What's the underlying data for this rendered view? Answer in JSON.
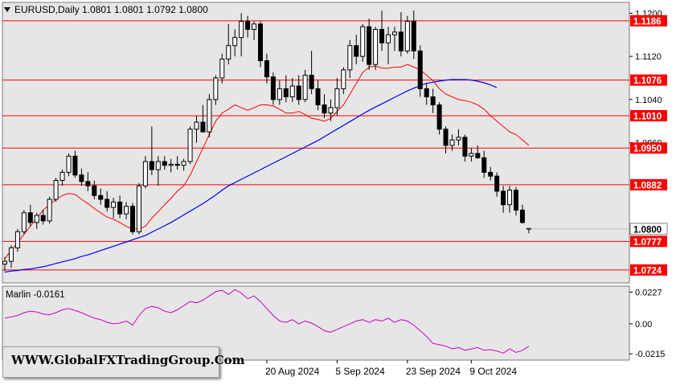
{
  "symbol_header": "EURUSD,Daily  1.0801  1.0801  1.0792  1.0800",
  "watermark": "WWW.GlobalFXTradingGroup.Com",
  "chart_data": [
    {
      "type": "candlestick",
      "title": "EURUSD,Daily",
      "ohlc_header": {
        "open": 1.0801,
        "high": 1.0801,
        "low": 1.0792,
        "close": 1.08
      },
      "ylim": [
        1.07,
        1.122
      ],
      "y_ticks": [
        1.12,
        1.112,
        1.104,
        1.096
      ],
      "x_tick_labels": [
        "20 Aug 2024",
        "5 Sep 2024",
        "23 Sep 2024",
        "9 Oct 2024"
      ],
      "current_price": 1.08,
      "grid": false,
      "colors": {
        "background": "#e6e6e6",
        "bull": "#ffffff",
        "bear": "#000000",
        "level_line": "#ff0000",
        "label_fill": "#ff0000",
        "label_text": "#ffffff",
        "ma_fast": "#ff0000",
        "ma_slow": "#0000ff"
      },
      "horizontal_levels": [
        1.1186,
        1.1076,
        1.101,
        1.095,
        1.0882,
        1.0777,
        1.0724
      ],
      "candles": [
        [
          1.0735,
          1.0748,
          1.0722,
          1.074
        ],
        [
          1.074,
          1.077,
          1.0728,
          1.0765
        ],
        [
          1.0765,
          1.08,
          1.0758,
          1.0795
        ],
        [
          1.0795,
          1.0835,
          1.079,
          1.083
        ],
        [
          1.083,
          1.0845,
          1.0805,
          1.0812
        ],
        [
          1.0812,
          1.083,
          1.08,
          1.0825
        ],
        [
          1.0825,
          1.0835,
          1.0808,
          1.0815
        ],
        [
          1.0815,
          1.086,
          1.081,
          1.0855
        ],
        [
          1.0855,
          1.0895,
          1.085,
          1.089
        ],
        [
          1.089,
          1.091,
          1.088,
          1.0905
        ],
        [
          1.0905,
          1.094,
          1.0898,
          1.0935
        ],
        [
          1.0935,
          1.0945,
          1.0895,
          1.09
        ],
        [
          1.09,
          1.0912,
          1.088,
          1.0888
        ],
        [
          1.0888,
          1.0905,
          1.087,
          1.088
        ],
        [
          1.088,
          1.089,
          1.0855,
          1.0862
        ],
        [
          1.0862,
          1.0875,
          1.0845,
          1.0855
        ],
        [
          1.0855,
          1.087,
          1.0832,
          1.084
        ],
        [
          1.084,
          1.0858,
          1.082,
          1.085
        ],
        [
          1.085,
          1.0862,
          1.082,
          1.0828
        ],
        [
          1.0828,
          1.085,
          1.0818,
          1.0842
        ],
        [
          1.0842,
          1.0848,
          1.079,
          1.0795
        ],
        [
          1.0795,
          1.0885,
          1.079,
          1.088
        ],
        [
          1.088,
          1.0935,
          1.0875,
          1.0925
        ],
        [
          1.0925,
          1.099,
          1.09,
          1.091
        ],
        [
          1.091,
          1.0935,
          1.088,
          1.0925
        ],
        [
          1.0925,
          1.0935,
          1.091,
          1.0918
        ],
        [
          1.0918,
          1.093,
          1.0905,
          1.092
        ],
        [
          1.092,
          1.0935,
          1.091,
          1.0918
        ],
        [
          1.0918,
          1.093,
          1.0908,
          1.0925
        ],
        [
          1.0925,
          1.099,
          1.092,
          1.0985
        ],
        [
          1.0985,
          1.101,
          1.096,
          1.0998
        ],
        [
          1.0998,
          1.103,
          1.0985,
          1.098
        ],
        [
          1.098,
          1.105,
          1.097,
          1.104
        ],
        [
          1.104,
          1.1085,
          1.103,
          1.108
        ],
        [
          1.108,
          1.1125,
          1.107,
          1.1115
        ],
        [
          1.1115,
          1.118,
          1.1105,
          1.114
        ],
        [
          1.114,
          1.117,
          1.112,
          1.1155
        ],
        [
          1.1155,
          1.12,
          1.112,
          1.1185
        ],
        [
          1.1185,
          1.1195,
          1.1155,
          1.117
        ],
        [
          1.117,
          1.1185,
          1.115,
          1.118
        ],
        [
          1.118,
          1.1185,
          1.11,
          1.1112
        ],
        [
          1.1112,
          1.1125,
          1.107,
          1.1082
        ],
        [
          1.1082,
          1.109,
          1.103,
          1.104
        ],
        [
          1.104,
          1.1075,
          1.103,
          1.106
        ],
        [
          1.106,
          1.1085,
          1.1035,
          1.1045
        ],
        [
          1.1045,
          1.108,
          1.1035,
          1.1065
        ],
        [
          1.1065,
          1.1085,
          1.103,
          1.104
        ],
        [
          1.104,
          1.1095,
          1.1035,
          1.1085
        ],
        [
          1.1085,
          1.113,
          1.105,
          1.106
        ],
        [
          1.106,
          1.1075,
          1.102,
          1.103
        ],
        [
          1.103,
          1.105,
          1.1005,
          1.1015
        ],
        [
          1.1015,
          1.104,
          1.1,
          1.1025
        ],
        [
          1.1025,
          1.108,
          1.101,
          1.106
        ],
        [
          1.106,
          1.11,
          1.105,
          1.1095
        ],
        [
          1.1095,
          1.115,
          1.108,
          1.114
        ],
        [
          1.114,
          1.116,
          1.1105,
          1.112
        ],
        [
          1.112,
          1.118,
          1.111,
          1.1175
        ],
        [
          1.1175,
          1.119,
          1.1095,
          1.1105
        ],
        [
          1.1105,
          1.1175,
          1.1095,
          1.117
        ],
        [
          1.117,
          1.1205,
          1.113,
          1.1145
        ],
        [
          1.1145,
          1.1175,
          1.1105,
          1.116
        ],
        [
          1.116,
          1.1175,
          1.113,
          1.1165
        ],
        [
          1.1165,
          1.1202,
          1.112,
          1.113
        ],
        [
          1.113,
          1.1195,
          1.1125,
          1.1185
        ],
        [
          1.1185,
          1.1205,
          1.1115,
          1.113
        ],
        [
          1.113,
          1.114,
          1.1045,
          1.106
        ],
        [
          1.106,
          1.107,
          1.103,
          1.1045
        ],
        [
          1.1045,
          1.106,
          1.1015,
          1.103
        ],
        [
          1.103,
          1.1035,
          1.0975,
          1.0985
        ],
        [
          1.0985,
          1.099,
          1.094,
          1.0955
        ],
        [
          1.0955,
          1.0975,
          1.0945,
          1.0965
        ],
        [
          1.0965,
          1.0985,
          1.0955,
          1.097
        ],
        [
          1.097,
          1.0975,
          1.0925,
          1.0935
        ],
        [
          1.0935,
          1.095,
          1.0925,
          1.094
        ],
        [
          1.094,
          1.0955,
          1.093,
          1.0932
        ],
        [
          1.0932,
          1.0945,
          1.0895,
          1.0905
        ],
        [
          1.0905,
          1.0915,
          1.089,
          1.0898
        ],
        [
          1.0898,
          1.0905,
          1.086,
          1.087
        ],
        [
          1.087,
          1.088,
          1.083,
          1.0845
        ],
        [
          1.0845,
          1.088,
          1.083,
          1.0872
        ],
        [
          1.0872,
          1.0878,
          1.0825,
          1.0835
        ],
        [
          1.0835,
          1.0845,
          1.081,
          1.0812
        ],
        [
          1.0801,
          1.0801,
          1.0792,
          1.08
        ]
      ],
      "ma_fast": [
        1.0745,
        1.076,
        1.0775,
        1.079,
        1.0805,
        1.082,
        1.0835,
        1.0845,
        1.0855,
        1.0862,
        1.0866,
        1.0864,
        1.0855,
        1.0847,
        1.0838,
        1.083,
        1.0822,
        1.0818,
        1.0812,
        1.0805,
        1.08,
        1.08,
        1.0805,
        1.082,
        1.0832,
        1.0845,
        1.0857,
        1.087,
        1.088,
        1.09,
        1.0925,
        1.095,
        1.0975,
        1.1,
        1.1015,
        1.1022,
        1.103,
        1.1025,
        1.102,
        1.1025,
        1.103,
        1.103,
        1.1028,
        1.1022,
        1.1015,
        1.1015,
        1.1018,
        1.1012,
        1.1005,
        1.1003,
        1.1,
        1.1005,
        1.1018,
        1.103,
        1.105,
        1.107,
        1.109,
        1.11,
        1.1102,
        1.1098,
        1.1098,
        1.11,
        1.11,
        1.1105,
        1.11,
        1.1095,
        1.1085,
        1.1075,
        1.106,
        1.105,
        1.1045,
        1.104,
        1.1038,
        1.1035,
        1.103,
        1.1022,
        1.101,
        1.1,
        1.099,
        1.098,
        1.0975,
        1.0965,
        1.0955
      ],
      "ma_slow_x_range": [
        0,
        77
      ],
      "ma_slow": [
        1.072,
        1.0722,
        1.0723,
        1.0725,
        1.0726,
        1.0728,
        1.073,
        1.0733,
        1.0736,
        1.0739,
        1.0742,
        1.0745,
        1.0749,
        1.0752,
        1.0756,
        1.076,
        1.0764,
        1.0768,
        1.0772,
        1.0776,
        1.078,
        1.0784,
        1.0788,
        1.0794,
        1.08,
        1.0806,
        1.0812,
        1.0819,
        1.0826,
        1.0833,
        1.084,
        1.0847,
        1.0855,
        1.0863,
        1.0872,
        1.088,
        1.0886,
        1.0892,
        1.0898,
        1.0904,
        1.091,
        1.0916,
        1.0922,
        1.0928,
        1.0934,
        1.094,
        1.0946,
        1.0952,
        1.0958,
        1.0964,
        1.0971,
        1.0978,
        1.0985,
        1.0992,
        1.0999,
        1.1006,
        1.1013,
        1.102,
        1.1026,
        1.1032,
        1.1038,
        1.1044,
        1.105,
        1.1056,
        1.1061,
        1.1066,
        1.107,
        1.1072,
        1.1074,
        1.1076,
        1.1077,
        1.1077,
        1.1077,
        1.1076,
        1.1074,
        1.1071,
        1.1067,
        1.1062
      ]
    },
    {
      "type": "line",
      "title": "Marlin -0.0161",
      "indicator_value": -0.0161,
      "ylim": [
        -0.026,
        0.027
      ],
      "y_ticks": [
        0.0227,
        0.0,
        -0.0215
      ],
      "y_tick_labels": [
        "0.0227",
        "0.00",
        "-0.0215"
      ],
      "color": "#cc00cc",
      "values": [
        0.004,
        0.005,
        0.006,
        0.008,
        0.009,
        0.0085,
        0.007,
        0.0065,
        0.008,
        0.01,
        0.011,
        0.0095,
        0.008,
        0.006,
        0.004,
        0.003,
        0.001,
        0.0,
        0.0005,
        0.002,
        -0.001,
        0.006,
        0.011,
        0.0125,
        0.0115,
        0.009,
        0.008,
        0.01,
        0.013,
        0.016,
        0.015,
        0.017,
        0.02,
        0.023,
        0.024,
        0.021,
        0.0245,
        0.022,
        0.018,
        0.02,
        0.016,
        0.011,
        0.006,
        0.002,
        0.001,
        0.003,
        0.0,
        0.002,
        0.0005,
        -0.002,
        -0.005,
        -0.006,
        -0.004,
        -0.002,
        0.0,
        0.002,
        0.003,
        0.001,
        0.003,
        0.002,
        0.004,
        0.001,
        0.003,
        0.002,
        -0.001,
        -0.005,
        -0.009,
        -0.014,
        -0.015,
        -0.016,
        -0.018,
        -0.017,
        -0.019,
        -0.018,
        -0.017,
        -0.019,
        -0.0185,
        -0.0195,
        -0.021,
        -0.018,
        -0.0205,
        -0.019,
        -0.0161
      ]
    }
  ]
}
